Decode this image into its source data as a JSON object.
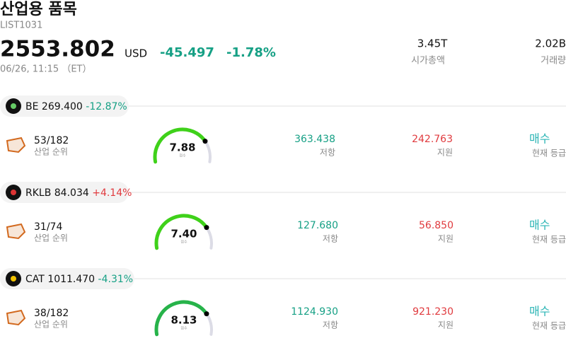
{
  "header": {
    "title": "산업용 품목",
    "code": "LIST1031",
    "price": "2553.802",
    "currency": "USD",
    "change": "-45.497",
    "change_pct": "-1.78%",
    "time": "06/26, 11:15 （ET）"
  },
  "stats": [
    {
      "value": "3.45T",
      "label": "시가총액"
    },
    {
      "value": "2.02B",
      "label": "거래량"
    }
  ],
  "rows": [
    {
      "ticker": "BE",
      "price": "269.400",
      "change": "-12.87%",
      "rank": "53/182",
      "rank_label": "산업 순위",
      "score": "7.88",
      "score_label": "점수",
      "resistance": "363.438",
      "resistance_label": "저항",
      "support": "242.763",
      "support_label": "지원",
      "rating": "매수",
      "rating_label": "현재 등급"
    },
    {
      "ticker": "RKLB",
      "price": "84.034",
      "change": "+4.14%",
      "rank": "31/74",
      "rank_label": "산업 순위",
      "score": "7.40",
      "score_label": "점수",
      "resistance": "127.680",
      "resistance_label": "저항",
      "support": "56.850",
      "support_label": "지원",
      "rating": "매수",
      "rating_label": "현재 등급"
    },
    {
      "ticker": "CAT",
      "price": "1011.470",
      "change": "-4.31%",
      "rank": "38/182",
      "rank_label": "산업 순위",
      "score": "8.13",
      "score_label": "점수",
      "resistance": "1124.930",
      "resistance_label": "저항",
      "support": "921.230",
      "support_label": "지원",
      "rating": "매수",
      "rating_label": "현재 등급"
    }
  ]
}
